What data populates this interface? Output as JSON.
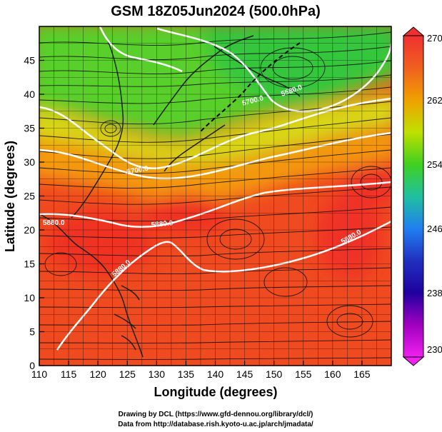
{
  "title": "GSM 18Z05Jun2024 (500.0hPa)",
  "xlabel": "Longitude (degrees)",
  "ylabel": "Latitude  (degrees)",
  "credits": [
    "Drawing by DCL (https://www.gfd-dennou.org/library/dcl/)",
    "Data from http://database.rish.kyoto-u.ac.jp/arch/jmadata/"
  ],
  "x_ticks": [
    "110",
    "115",
    "120",
    "125",
    "130",
    "135",
    "140",
    "145",
    "150",
    "155",
    "160",
    "165"
  ],
  "y_ticks": [
    "0",
    "5",
    "10",
    "15",
    "20",
    "25",
    "30",
    "35",
    "40",
    "45"
  ],
  "colorbar": {
    "ticks": [
      "270",
      "262",
      "254",
      "246",
      "238",
      "230"
    ],
    "colors": [
      "#f03030",
      "#f06020",
      "#f0a000",
      "#c0e000",
      "#40d020",
      "#20c0a0",
      "#2080f0",
      "#2030c0",
      "#2000a0",
      "#a000c0",
      "#f020f0"
    ]
  },
  "contour_labels": [
    "5880.0",
    "5880.0",
    "5700.0",
    "5580.0",
    "5700.0",
    "5880.0",
    "5880.0"
  ],
  "chart_data": {
    "type": "heatmap",
    "title": "GSM 18Z05Jun2024 (500.0hPa)",
    "xlabel": "Longitude (degrees)",
    "ylabel": "Latitude  (degrees)",
    "xlim": [
      110,
      170
    ],
    "ylim": [
      0,
      50
    ],
    "color_range": [
      230,
      270
    ]
  }
}
